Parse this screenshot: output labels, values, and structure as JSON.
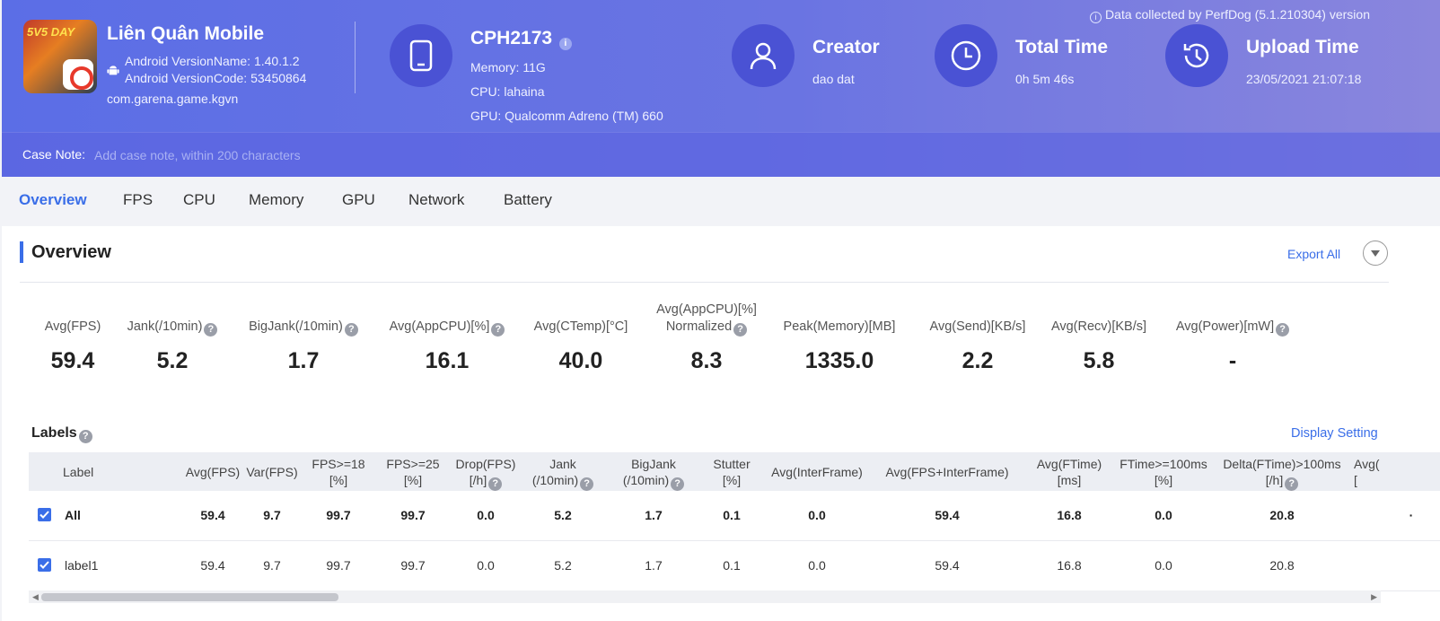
{
  "header": {
    "app": {
      "name": "Liên Quân Mobile",
      "icon_badge": "5V5 DAY",
      "version_name": "Android VersionName: 1.40.1.2",
      "version_code": "Android VersionCode: 53450864",
      "package": "com.garena.game.kgvn"
    },
    "device": {
      "model": "CPH2173",
      "memory": "Memory: 11G",
      "cpu": "CPU: lahaina",
      "gpu": "GPU: Qualcomm Adreno (TM) 660"
    },
    "creator": {
      "title": "Creator",
      "value": "dao dat"
    },
    "total_time": {
      "title": "Total Time",
      "value": "0h 5m 46s"
    },
    "upload_time": {
      "title": "Upload Time",
      "value": "23/05/2021 21:07:18"
    },
    "perfdog_note": "Data collected by PerfDog (5.1.210304) version",
    "case_note": {
      "label": "Case Note:",
      "placeholder": "Add case note, within 200 characters"
    },
    "colors": {
      "header_start": "#5b6ee6",
      "header_end": "#8a86dd",
      "icon_circle": "#4a52d4"
    }
  },
  "tabs": [
    "Overview",
    "FPS",
    "CPU",
    "Memory",
    "GPU",
    "Network",
    "Battery"
  ],
  "active_tab": "Overview",
  "overview": {
    "title": "Overview",
    "export_all": "Export All",
    "metrics": [
      {
        "label": "Avg(FPS)",
        "value": "59.4"
      },
      {
        "label": "Jank(/10min)",
        "value": "5.2"
      },
      {
        "label": "BigJank(/10min)",
        "value": "1.7"
      },
      {
        "label": "Avg(AppCPU)[%]",
        "value": "16.1"
      },
      {
        "label": "Avg(CTemp)[°C]",
        "value": "40.0"
      },
      {
        "label": "Avg(AppCPU)[%]",
        "label2": "Normalized",
        "value": "8.3"
      },
      {
        "label": "Peak(Memory)[MB]",
        "value": "1335.0"
      },
      {
        "label": "Avg(Send)[KB/s]",
        "value": "2.2"
      },
      {
        "label": "Avg(Recv)[KB/s]",
        "value": "5.8"
      },
      {
        "label": "Avg(Power)[mW]",
        "value": "-"
      }
    ]
  },
  "labels_section": {
    "title": "Labels",
    "display_setting": "Display Setting",
    "columns": [
      {
        "l1": "Label",
        "l2": ""
      },
      {
        "l1": "Avg(FPS)",
        "l2": ""
      },
      {
        "l1": "Var(FPS)",
        "l2": ""
      },
      {
        "l1": "FPS>=18",
        "l2": "[%]"
      },
      {
        "l1": "FPS>=25",
        "l2": "[%]"
      },
      {
        "l1": "Drop(FPS)",
        "l2": "[/h]"
      },
      {
        "l1": "Jank",
        "l2": "(/10min)"
      },
      {
        "l1": "BigJank",
        "l2": "(/10min)"
      },
      {
        "l1": "Stutter",
        "l2": "[%]"
      },
      {
        "l1": "Avg(InterFrame)",
        "l2": ""
      },
      {
        "l1": "Avg(FPS+InterFrame)",
        "l2": ""
      },
      {
        "l1": "Avg(FTime)",
        "l2": "[ms]"
      },
      {
        "l1": "FTime>=100ms",
        "l2": "[%]"
      },
      {
        "l1": "Delta(FTime)>100ms",
        "l2": "[/h]"
      },
      {
        "l1": "Avg(",
        "l2": "["
      }
    ],
    "rows": [
      {
        "label": "All",
        "values": [
          "59.4",
          "9.7",
          "99.7",
          "99.7",
          "0.0",
          "5.2",
          "1.7",
          "0.1",
          "0.0",
          "59.4",
          "16.8",
          "0.0",
          "20.8",
          "·"
        ]
      },
      {
        "label": "label1",
        "values": [
          "59.4",
          "9.7",
          "99.7",
          "99.7",
          "0.0",
          "5.2",
          "1.7",
          "0.1",
          "0.0",
          "59.4",
          "16.8",
          "0.0",
          "20.8",
          ""
        ]
      }
    ]
  }
}
